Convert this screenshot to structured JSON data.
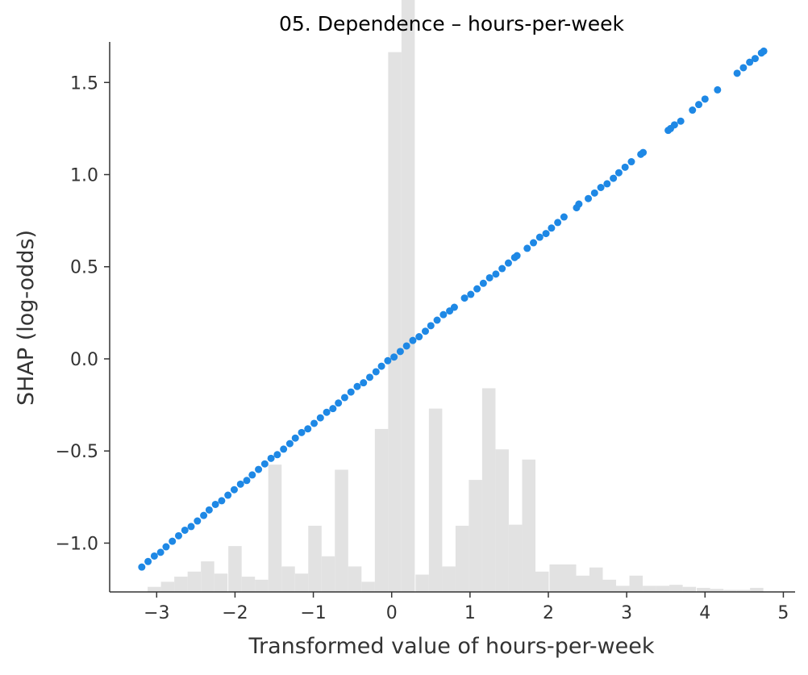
{
  "chart_data": {
    "type": "scatter",
    "title": "05. Dependence – hours-per-week",
    "xlabel": "Transformed value of hours-per-week",
    "ylabel": "SHAP (log-odds)",
    "xlim": [
      -3.6,
      5.15
    ],
    "ylim": [
      -1.265,
      1.72
    ],
    "x_ticks": [
      -3,
      -2,
      -1,
      0,
      1,
      2,
      3,
      4,
      5
    ],
    "x_tick_labels": [
      "−3",
      "−2",
      "−1",
      "0",
      "1",
      "2",
      "3",
      "4",
      "5"
    ],
    "y_ticks": [
      -1.0,
      -0.5,
      0.0,
      0.5,
      1.0,
      1.5
    ],
    "y_tick_labels": [
      "−1.0",
      "−0.5",
      "0.0",
      "0.5",
      "1.0",
      "1.5"
    ],
    "grid": false,
    "colors": {
      "points": "#1e88e5",
      "histogram": "#e2e2e2",
      "axes": "#333333"
    },
    "series": [
      {
        "x": [
          -3.19,
          -3.11,
          -3.03,
          -2.95,
          -2.88,
          -2.8,
          -2.72,
          -2.64,
          -2.56,
          -2.48,
          -2.4,
          -2.33,
          -2.25,
          -2.17,
          -2.09,
          -2.01,
          -1.93,
          -1.85,
          -1.78,
          -1.7,
          -1.62,
          -1.54,
          -1.46,
          -1.38,
          -1.3,
          -1.23,
          -1.15,
          -1.07,
          -0.99,
          -0.91,
          -0.83,
          -0.75,
          -0.68,
          -0.6,
          -0.52,
          -0.44,
          -0.36,
          -0.28,
          -0.2,
          -0.13,
          -0.05,
          0.03,
          0.11,
          0.19,
          0.27,
          0.35,
          0.43,
          0.5,
          0.58,
          0.66,
          0.74,
          0.8,
          0.93,
          1.01,
          1.09,
          1.17,
          1.25,
          1.33,
          1.41,
          1.49,
          1.57,
          1.6,
          1.73,
          1.81,
          1.89,
          1.97,
          2.04,
          2.12,
          2.2,
          2.36,
          2.39,
          2.51,
          2.59,
          2.67,
          2.75,
          2.83,
          2.9,
          2.98,
          3.06,
          3.18,
          3.21,
          3.53,
          3.56,
          3.61,
          3.69,
          3.84,
          3.92,
          4.0,
          4.16,
          4.41,
          4.49,
          4.57,
          4.64,
          4.72,
          4.75
        ],
        "y": [
          -1.13,
          -1.1,
          -1.07,
          -1.05,
          -1.02,
          -0.99,
          -0.96,
          -0.93,
          -0.91,
          -0.88,
          -0.85,
          -0.82,
          -0.79,
          -0.77,
          -0.74,
          -0.71,
          -0.68,
          -0.66,
          -0.63,
          -0.6,
          -0.57,
          -0.54,
          -0.52,
          -0.49,
          -0.46,
          -0.43,
          -0.4,
          -0.38,
          -0.35,
          -0.32,
          -0.29,
          -0.27,
          -0.24,
          -0.21,
          -0.18,
          -0.15,
          -0.13,
          -0.1,
          -0.07,
          -0.04,
          -0.01,
          0.01,
          0.04,
          0.07,
          0.1,
          0.12,
          0.15,
          0.18,
          0.21,
          0.24,
          0.26,
          0.28,
          0.33,
          0.35,
          0.38,
          0.41,
          0.44,
          0.46,
          0.49,
          0.52,
          0.55,
          0.56,
          0.6,
          0.63,
          0.66,
          0.68,
          0.71,
          0.74,
          0.77,
          0.82,
          0.84,
          0.87,
          0.9,
          0.93,
          0.95,
          0.98,
          1.01,
          1.04,
          1.07,
          1.11,
          1.12,
          1.24,
          1.25,
          1.27,
          1.29,
          1.35,
          1.38,
          1.41,
          1.46,
          1.55,
          1.58,
          1.61,
          1.63,
          1.66,
          1.67
        ]
      }
    ],
    "histogram": {
      "bin_centers": [
        -3.03,
        -2.86,
        -2.69,
        -2.52,
        -2.35,
        -2.18,
        -2.0,
        -1.83,
        -1.66,
        -1.49,
        -1.32,
        -1.15,
        -0.98,
        -0.81,
        -0.64,
        -0.47,
        -0.3,
        -0.13,
        0.04,
        0.21,
        0.39,
        0.56,
        0.73,
        0.9,
        1.07,
        1.24,
        1.41,
        1.58,
        1.75,
        1.92,
        2.1,
        2.27,
        2.44,
        2.61,
        2.78,
        2.95,
        3.12,
        3.29,
        3.46,
        3.63,
        3.8,
        3.98,
        4.15,
        4.32,
        4.49,
        4.66
      ],
      "heights": [
        0.005,
        0.01,
        0.015,
        0.02,
        0.03,
        0.018,
        0.045,
        0.015,
        0.012,
        0.125,
        0.025,
        0.018,
        0.065,
        0.035,
        0.12,
        0.025,
        0.01,
        0.16,
        0.53,
        0.6,
        0.017,
        0.18,
        0.025,
        0.065,
        0.11,
        0.2,
        0.14,
        0.066,
        0.13,
        0.02,
        0.027,
        0.027,
        0.016,
        0.024,
        0.012,
        0.006,
        0.016,
        0.006,
        0.006,
        0.007,
        0.005,
        0.004,
        0.003,
        0.002,
        0.002,
        0.004
      ],
      "ymax": 0.54
    }
  }
}
